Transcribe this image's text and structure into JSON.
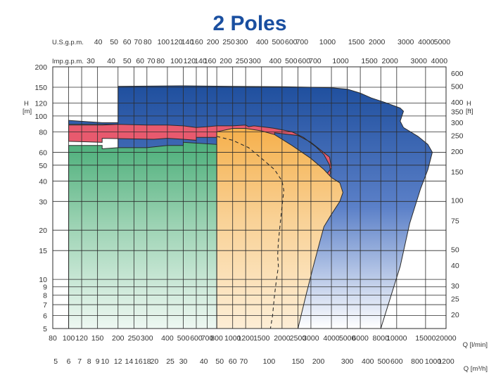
{
  "chart_data": {
    "type": "area",
    "title": "2 Poles",
    "x_axis": {
      "label_line1": "Q [l/min]",
      "label_line2": "Q [m³/h]",
      "scale": "log",
      "range_l_min": [
        80,
        20000
      ],
      "ticks_l_min": [
        80,
        100,
        120,
        150,
        200,
        250,
        300,
        400,
        500,
        600,
        700,
        800,
        1000,
        1200,
        1500,
        2000,
        2500,
        3000,
        4000,
        5000,
        6000,
        8000,
        10000,
        15000,
        20000
      ],
      "tick_labels_l_min": [
        "80",
        "100",
        "120",
        "150",
        "200",
        "250",
        "300",
        "400",
        "500",
        "600",
        "700",
        "800",
        "1000",
        "1200",
        "1500",
        "2000",
        "2500",
        "3000",
        "4000",
        "5000",
        "6000",
        "8000",
        "10000",
        "15000",
        "20000"
      ],
      "ticks_m3h": [
        5,
        6,
        7,
        8,
        9,
        10,
        12,
        14,
        16,
        18,
        20,
        25,
        30,
        40,
        50,
        60,
        70,
        100,
        150,
        200,
        300,
        400,
        500,
        600,
        800,
        1000,
        1200
      ],
      "tick_labels_m3h": [
        "5",
        "6",
        "7",
        "8",
        "9",
        "10",
        "12",
        "14",
        "16",
        "18",
        "20",
        "25",
        "30",
        "40",
        "50",
        "60",
        "70",
        "100",
        "150",
        "200",
        "300",
        "400",
        "500",
        "600",
        "800",
        "1000",
        "1200"
      ],
      "top_us_label": "U.S.g.p.m.",
      "ticks_us_gpm": [
        40,
        50,
        60,
        70,
        80,
        100,
        120,
        140,
        160,
        200,
        250,
        300,
        400,
        500,
        600,
        700,
        1000,
        1500,
        2000,
        3000,
        4000,
        5000
      ],
      "tick_labels_us_gpm": [
        "40",
        "50",
        "60",
        "70",
        "80",
        "100",
        "120",
        "140",
        "160",
        "200",
        "250",
        "300",
        "400",
        "500",
        "600",
        "700",
        "1000",
        "1500",
        "2000",
        "3000",
        "4000",
        "5000"
      ],
      "top_imp_label": "Imp.g.p.m.",
      "ticks_imp_gpm": [
        30,
        40,
        50,
        60,
        70,
        80,
        100,
        120,
        140,
        160,
        200,
        250,
        300,
        400,
        500,
        600,
        700,
        1000,
        1500,
        2000,
        3000,
        4000
      ],
      "tick_labels_imp_gpm": [
        "30",
        "40",
        "50",
        "60",
        "70",
        "80",
        "100",
        "120",
        "140",
        "160",
        "200",
        "250",
        "300",
        "400",
        "500",
        "600",
        "700",
        "1000",
        "1500",
        "2000",
        "3000",
        "4000"
      ]
    },
    "y_axis": {
      "label_left_line1": "H",
      "label_left_line2": "[m]",
      "scale": "log",
      "range_m": [
        5,
        200
      ],
      "ticks_m": [
        5,
        6,
        7,
        8,
        9,
        10,
        15,
        20,
        30,
        40,
        50,
        60,
        80,
        100,
        120,
        150,
        200
      ],
      "tick_labels_m": [
        "5",
        "6",
        "7",
        "8",
        "9",
        "10",
        "15",
        "20",
        "30",
        "40",
        "50",
        "60",
        "80",
        "100",
        "120",
        "150",
        "200"
      ],
      "label_right_line1": "H",
      "label_right_line2": "[ft]",
      "ticks_ft": [
        20,
        25,
        30,
        40,
        50,
        75,
        100,
        150,
        200,
        250,
        300,
        350,
        400,
        500,
        600
      ],
      "tick_labels_ft": [
        "20",
        "25",
        "30",
        "40",
        "50",
        "75",
        "100",
        "150",
        "200",
        "250",
        "300",
        "350",
        "400",
        "500",
        "600"
      ]
    },
    "grid": true,
    "colors": {
      "blue_top": "#1f4f9e",
      "blue_bottom": "#ffffff",
      "red": "#e85a6e",
      "red_light": "#f6b3bb",
      "orange_top": "#f5b04c",
      "orange_bottom": "#fdeed6",
      "green_top": "#4caf7a",
      "green_bottom": "#e6f4ec",
      "title": "#1a4fa0"
    },
    "series": [
      {
        "key": "blue",
        "points": [
          [
            200,
            5
          ],
          [
            200,
            89
          ],
          [
            100,
            89
          ],
          [
            100,
            94
          ],
          [
            160,
            91
          ],
          [
            200,
            91
          ],
          [
            200,
            152
          ],
          [
            500,
            153
          ],
          [
            1000,
            152
          ],
          [
            2000,
            151
          ],
          [
            3000,
            150
          ],
          [
            4000,
            149
          ],
          [
            5000,
            146
          ],
          [
            6000,
            138
          ],
          [
            7000,
            129
          ],
          [
            8500,
            121
          ],
          [
            10500,
            112
          ],
          [
            11000,
            107
          ],
          [
            10500,
            93
          ],
          [
            11000,
            85
          ],
          [
            13500,
            75
          ],
          [
            15500,
            67
          ],
          [
            16500,
            60
          ],
          [
            15500,
            47
          ],
          [
            14000,
            36
          ],
          [
            12000,
            22
          ],
          [
            10500,
            12
          ],
          [
            8000,
            5
          ]
        ]
      },
      {
        "key": "red",
        "points": [
          [
            100,
            70
          ],
          [
            160,
            69
          ],
          [
            160,
            73
          ],
          [
            330,
            72
          ],
          [
            400,
            73
          ],
          [
            500,
            72
          ],
          [
            600,
            71
          ],
          [
            600,
            74
          ],
          [
            800,
            74
          ],
          [
            1200,
            73
          ],
          [
            1800,
            72
          ],
          [
            1800,
            79
          ],
          [
            2500,
            76
          ],
          [
            3000,
            69
          ],
          [
            3500,
            61
          ],
          [
            3900,
            56
          ],
          [
            4000,
            48
          ],
          [
            3800,
            45
          ],
          [
            3300,
            23
          ],
          [
            3000,
            14
          ],
          [
            2700,
            8
          ],
          [
            2500,
            5
          ],
          [
            2440,
            5
          ],
          [
            2650,
            9
          ],
          [
            3000,
            17
          ],
          [
            3400,
            24
          ],
          [
            3600,
            30
          ],
          [
            3800,
            38
          ],
          [
            3950,
            45
          ],
          [
            3900,
            50
          ],
          [
            3600,
            58
          ],
          [
            3200,
            65
          ],
          [
            2700,
            74
          ],
          [
            2300,
            80
          ],
          [
            1800,
            84
          ],
          [
            1500,
            86
          ],
          [
            1350,
            87
          ],
          [
            1250,
            86
          ],
          [
            1200,
            88
          ],
          [
            1000,
            87
          ],
          [
            800,
            87
          ],
          [
            700,
            86
          ],
          [
            600,
            85
          ],
          [
            500,
            87
          ],
          [
            400,
            88
          ],
          [
            300,
            88
          ],
          [
            200,
            89
          ],
          [
            160,
            88
          ],
          [
            120,
            88
          ],
          [
            100,
            88
          ]
        ]
      },
      {
        "key": "orange",
        "points": [
          [
            800,
            5
          ],
          [
            800,
            80
          ],
          [
            900,
            82
          ],
          [
            1000,
            84
          ],
          [
            1200,
            84
          ],
          [
            1500,
            81
          ],
          [
            1800,
            77
          ],
          [
            2300,
            66
          ],
          [
            3000,
            55
          ],
          [
            3600,
            47
          ],
          [
            4000,
            42
          ],
          [
            4500,
            39
          ],
          [
            4700,
            34
          ],
          [
            4500,
            30
          ],
          [
            4000,
            25
          ],
          [
            3600,
            21
          ],
          [
            3400,
            17
          ],
          [
            3100,
            12
          ],
          [
            2800,
            8
          ],
          [
            2500,
            5
          ]
        ]
      },
      {
        "key": "green",
        "points": [
          [
            100,
            5
          ],
          [
            100,
            66
          ],
          [
            160,
            66
          ],
          [
            160,
            63
          ],
          [
            200,
            64
          ],
          [
            300,
            64
          ],
          [
            400,
            66
          ],
          [
            500,
            66
          ],
          [
            500,
            69
          ],
          [
            800,
            67
          ],
          [
            800,
            5
          ]
        ]
      },
      {
        "key": "dashed",
        "points": [
          [
            800,
            75
          ],
          [
            1000,
            71
          ],
          [
            1250,
            64
          ],
          [
            1500,
            55
          ],
          [
            1800,
            47
          ],
          [
            2000,
            40
          ],
          [
            2050,
            35
          ],
          [
            2000,
            28
          ],
          [
            1950,
            22
          ],
          [
            1900,
            17
          ],
          [
            1880,
            14
          ],
          [
            1900,
            12
          ],
          [
            1850,
            10
          ],
          [
            1800,
            8
          ],
          [
            1750,
            6
          ],
          [
            1700,
            5
          ]
        ]
      }
    ]
  }
}
